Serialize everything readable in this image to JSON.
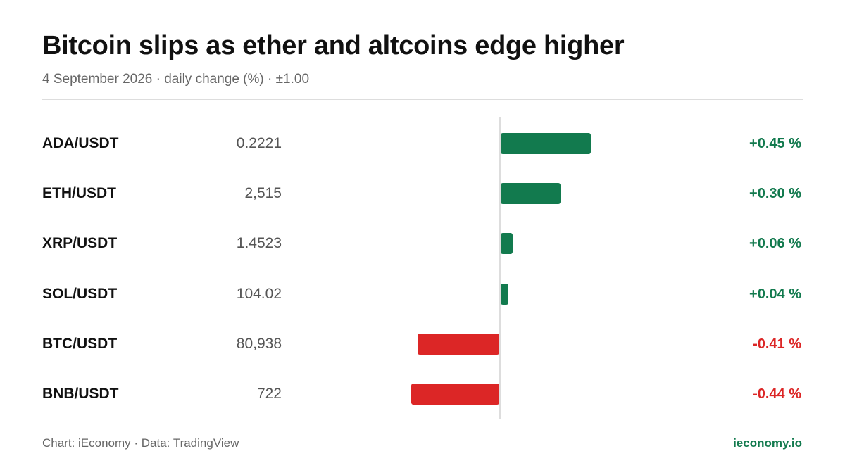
{
  "header": {
    "title": "Bitcoin slips as ether and altcoins edge higher",
    "subtitle": "4 September 2026 · daily change (%) · ±1.00"
  },
  "footer": {
    "credit": "Chart: iEconomy · Data: TradingView",
    "site": "ieconomy.io"
  },
  "colors": {
    "positive": "#127a4e",
    "negative": "#dc2626"
  },
  "chart_data": {
    "type": "bar",
    "orientation": "horizontal",
    "scale": [
      -1.0,
      1.0
    ],
    "rows": [
      {
        "pair": "ADA/USDT",
        "price": "0.2221",
        "change": 0.45,
        "change_label": "+0.45 %"
      },
      {
        "pair": "ETH/USDT",
        "price": "2,515",
        "change": 0.3,
        "change_label": "+0.30 %"
      },
      {
        "pair": "XRP/USDT",
        "price": "1.4523",
        "change": 0.06,
        "change_label": "+0.06 %"
      },
      {
        "pair": "SOL/USDT",
        "price": "104.02",
        "change": 0.04,
        "change_label": "+0.04 %"
      },
      {
        "pair": "BTC/USDT",
        "price": "80,938",
        "change": -0.41,
        "change_label": "-0.41 %"
      },
      {
        "pair": "BNB/USDT",
        "price": "722",
        "change": -0.44,
        "change_label": "-0.44 %"
      }
    ]
  }
}
